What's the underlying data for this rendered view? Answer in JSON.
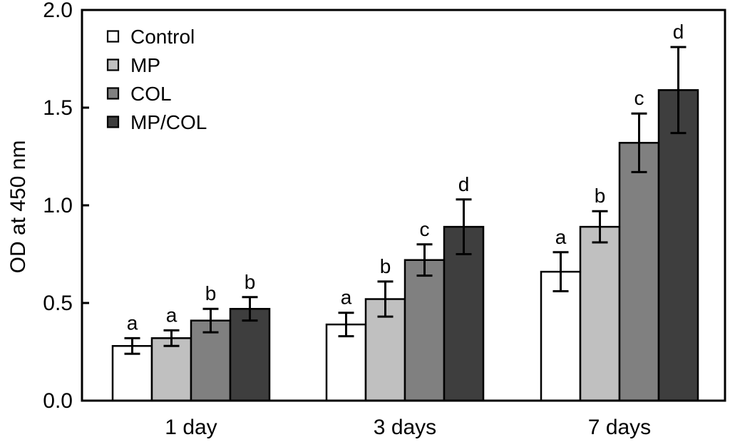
{
  "figure": {
    "background": "#ffffff",
    "axis_color": "#000000",
    "error_bar_color": "#000000",
    "text_color": "#000000"
  },
  "chart_data": {
    "type": "bar",
    "title": "",
    "xlabel": "",
    "ylabel": "OD at 450 nm",
    "ylim": [
      0.0,
      2.0
    ],
    "ytick_step": 0.5,
    "ytick_labels": [
      "0.0",
      "0.5",
      "1.0",
      "1.5",
      "2.0"
    ],
    "grid": false,
    "legend_position": "top-left",
    "categories": [
      "1 day",
      "3 days",
      "7 days"
    ],
    "series": [
      {
        "name": "Control",
        "fill": "#ffffff",
        "values": [
          0.28,
          0.39,
          0.66
        ],
        "errors": [
          0.04,
          0.06,
          0.1
        ],
        "sig_letters": [
          "a",
          "a",
          "a"
        ]
      },
      {
        "name": "MP",
        "fill": "#c0c0c0",
        "values": [
          0.32,
          0.52,
          0.89
        ],
        "errors": [
          0.04,
          0.09,
          0.08
        ],
        "sig_letters": [
          "a",
          "b",
          "b"
        ]
      },
      {
        "name": "COL",
        "fill": "#808080",
        "values": [
          0.41,
          0.72,
          1.32
        ],
        "errors": [
          0.06,
          0.08,
          0.15
        ],
        "sig_letters": [
          "b",
          "c",
          "c"
        ]
      },
      {
        "name": "MP/COL",
        "fill": "#3e3e3e",
        "values": [
          0.47,
          0.89,
          1.59
        ],
        "errors": [
          0.06,
          0.14,
          0.22
        ],
        "sig_letters": [
          "b",
          "d",
          "d"
        ]
      }
    ]
  }
}
